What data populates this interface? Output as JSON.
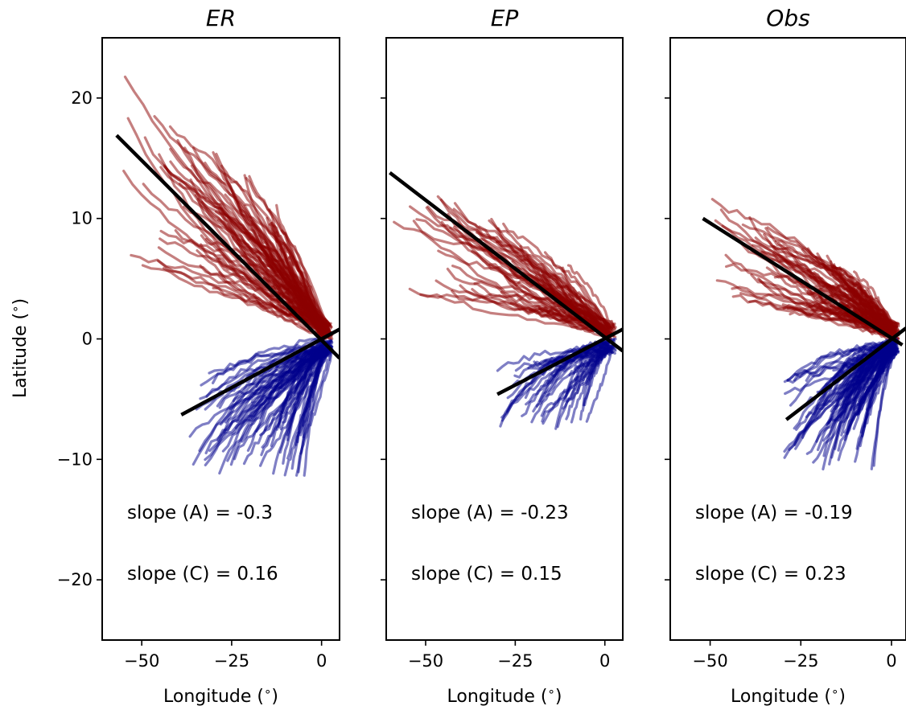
{
  "chart_data": [
    {
      "type": "line",
      "title": "ER",
      "xlabel": "Longitude ($^\\circ$)",
      "ylabel": "Latitude ($^\\circ$)",
      "xlim": [
        -61,
        5
      ],
      "ylim": [
        -25,
        25
      ],
      "xticks": [
        -50,
        -25,
        0
      ],
      "yticks": [
        -20,
        -10,
        0,
        10,
        20
      ],
      "grid": false,
      "series": [
        {
          "values_style": "tracks",
          "hemisphere": "north",
          "color": "#8b0000",
          "count": 90,
          "extent": {
            "lon_min": -57,
            "lon_max": 4,
            "lat_max": 23
          }
        },
        {
          "values_style": "tracks",
          "hemisphere": "south",
          "color": "#00008b",
          "count": 70,
          "extent": {
            "lon_min": -38,
            "lon_max": 4,
            "lat_min": -11.5
          }
        }
      ],
      "fit_lines": [
        {
          "label": "A",
          "slope": -0.3,
          "x": [
            -57,
            5
          ],
          "y": [
            16.9,
            -1.6
          ]
        },
        {
          "label": "C",
          "slope": 0.16,
          "x": [
            -39,
            5
          ],
          "y": [
            -6.3,
            0.8
          ]
        }
      ],
      "annotations": [
        "slope (A) = -0.3",
        "slope (C) = 0.16"
      ]
    },
    {
      "type": "line",
      "title": "EP",
      "xlabel": "Longitude ($^\\circ$)",
      "ylabel": "",
      "xlim": [
        -61,
        5
      ],
      "ylim": [
        -25,
        25
      ],
      "xticks": [
        -50,
        -25,
        0
      ],
      "yticks": [
        -20,
        -10,
        0,
        10,
        20
      ],
      "grid": false,
      "series": [
        {
          "values_style": "tracks",
          "hemisphere": "north",
          "color": "#8b0000",
          "count": 60,
          "extent": {
            "lon_min": -59,
            "lon_max": 4,
            "lat_max": 14.5
          }
        },
        {
          "values_style": "tracks",
          "hemisphere": "south",
          "color": "#00008b",
          "count": 40,
          "extent": {
            "lon_min": -30,
            "lon_max": 4,
            "lat_min": -7.5
          }
        }
      ],
      "fit_lines": [
        {
          "label": "A",
          "slope": -0.23,
          "x": [
            -60,
            5
          ],
          "y": [
            13.8,
            -1.0
          ]
        },
        {
          "label": "C",
          "slope": 0.15,
          "x": [
            -30,
            5
          ],
          "y": [
            -4.6,
            0.8
          ]
        }
      ],
      "annotations": [
        "slope (A) = -0.23",
        "slope (C) = 0.15"
      ]
    },
    {
      "type": "line",
      "title": "Obs",
      "xlabel": "Longitude ($^\\circ$)",
      "ylabel": "",
      "xlim": [
        -61,
        4
      ],
      "ylim": [
        -25,
        25
      ],
      "xticks": [
        -50,
        -25,
        0
      ],
      "yticks": [
        -20,
        -10,
        0,
        10,
        20
      ],
      "grid": false,
      "series": [
        {
          "values_style": "tracks",
          "hemisphere": "north",
          "color": "#8b0000",
          "count": 80,
          "extent": {
            "lon_min": -51,
            "lon_max": 3,
            "lat_max": 12
          }
        },
        {
          "values_style": "tracks",
          "hemisphere": "south",
          "color": "#00008b",
          "count": 80,
          "extent": {
            "lon_min": -30,
            "lon_max": 3,
            "lat_min": -10.7
          }
        }
      ],
      "fit_lines": [
        {
          "label": "A",
          "slope": -0.19,
          "x": [
            -52,
            3
          ],
          "y": [
            10.0,
            -0.5
          ]
        },
        {
          "label": "C",
          "slope": 0.23,
          "x": [
            -29,
            4
          ],
          "y": [
            -6.7,
            0.9
          ]
        }
      ],
      "annotations": [
        "slope (A) = -0.19",
        "slope (C) = 0.23"
      ]
    }
  ],
  "labels": {
    "panel_titles": [
      "ER",
      "EP",
      "Obs"
    ],
    "xlabel": "Longitude (",
    "ylabel": "Latitude (",
    "degree_symbol": "∘",
    "close_paren": ")"
  }
}
